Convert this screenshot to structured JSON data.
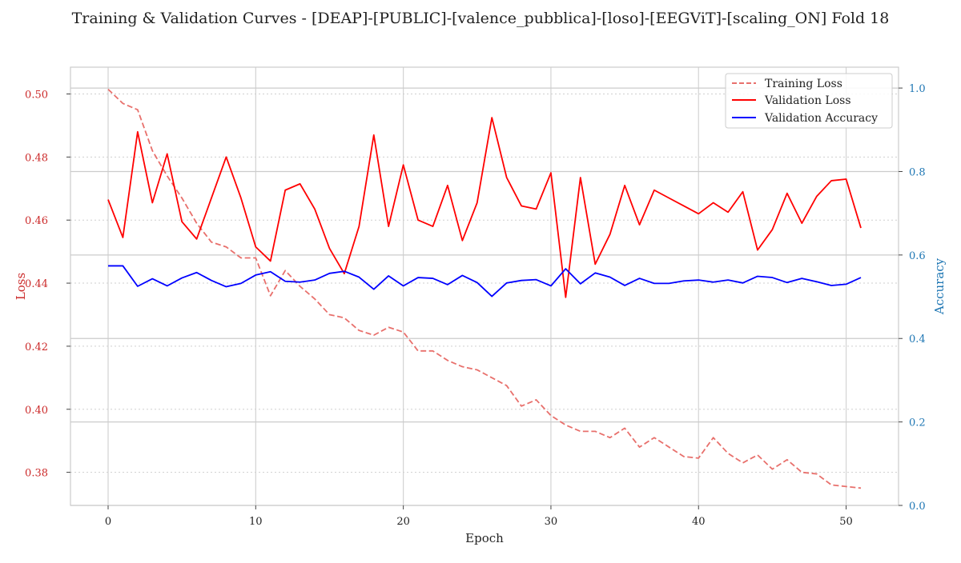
{
  "chart_data": {
    "type": "line",
    "title": "Training & Validation Curves - [DEAP]-[PUBLIC]-[valence_pubblica]-[loso]-[EEGViT]-[scaling_ON] Fold 18",
    "xlabel": "Epoch",
    "ylabel_left": "Loss",
    "ylabel_right": "Accuracy",
    "xlim": [
      -2.55,
      53.55
    ],
    "ylim_left": [
      0.3695,
      0.5085
    ],
    "ylim_right": [
      0.0,
      1.05
    ],
    "x_ticks": [
      0,
      10,
      20,
      30,
      40,
      50
    ],
    "y_left_ticks": [
      0.38,
      0.4,
      0.42,
      0.44,
      0.46,
      0.48,
      0.5
    ],
    "y_right_ticks": [
      0.0,
      0.2,
      0.4,
      0.6,
      0.8,
      1.0
    ],
    "grid": true,
    "legend_position": "top-right",
    "colors": {
      "training_loss": "#e8706c",
      "validation_loss": "#ff0000",
      "validation_accuracy": "#0000ff",
      "left_axis_text": "#cc2b2b",
      "right_axis_text": "#1f77b4"
    },
    "x": [
      0,
      1,
      2,
      3,
      4,
      5,
      6,
      7,
      8,
      9,
      10,
      11,
      12,
      13,
      14,
      15,
      16,
      17,
      18,
      19,
      20,
      21,
      22,
      23,
      24,
      25,
      26,
      27,
      28,
      29,
      30,
      31,
      32,
      33,
      34,
      35,
      36,
      37,
      38,
      39,
      40,
      41,
      42,
      43,
      44,
      45,
      46,
      47,
      48,
      49,
      50,
      51
    ],
    "series": [
      {
        "name": "Training Loss",
        "axis": "left",
        "style": "dashed",
        "values": [
          0.5015,
          0.497,
          0.495,
          0.482,
          0.474,
          0.467,
          0.459,
          0.453,
          0.4515,
          0.448,
          0.448,
          0.436,
          0.444,
          0.439,
          0.435,
          0.43,
          0.429,
          0.425,
          0.4235,
          0.426,
          0.4245,
          0.4185,
          0.4185,
          0.4155,
          0.4135,
          0.4125,
          0.41,
          0.4075,
          0.401,
          0.403,
          0.398,
          0.395,
          0.393,
          0.393,
          0.391,
          0.394,
          0.388,
          0.391,
          0.388,
          0.385,
          0.3845,
          0.391,
          0.386,
          0.383,
          0.3855,
          0.381,
          0.384,
          0.38,
          0.3795,
          0.376,
          0.3755,
          0.375
        ]
      },
      {
        "name": "Validation Loss",
        "axis": "left",
        "style": "solid",
        "values": [
          0.4665,
          0.4545,
          0.488,
          0.4655,
          0.481,
          0.4595,
          0.454,
          0.467,
          0.48,
          0.467,
          0.4515,
          0.447,
          0.4695,
          0.4715,
          0.4635,
          0.451,
          0.443,
          0.458,
          0.487,
          0.458,
          0.4775,
          0.46,
          0.458,
          0.471,
          0.4535,
          0.4655,
          0.4925,
          0.4735,
          0.4645,
          0.4635,
          0.475,
          0.4355,
          0.4735,
          0.446,
          0.4555,
          0.471,
          0.4585,
          0.4695,
          0.467,
          0.4645,
          0.462,
          0.4655,
          0.4625,
          0.469,
          0.4505,
          0.457,
          0.4685,
          0.459,
          0.4675,
          0.4725,
          0.473,
          0.4575
        ]
      },
      {
        "name": "Validation Accuracy",
        "axis": "right",
        "style": "solid",
        "values": [
          0.574,
          0.574,
          0.525,
          0.543,
          0.526,
          0.545,
          0.558,
          0.539,
          0.524,
          0.532,
          0.552,
          0.56,
          0.537,
          0.535,
          0.54,
          0.556,
          0.561,
          0.547,
          0.518,
          0.55,
          0.526,
          0.546,
          0.544,
          0.529,
          0.551,
          0.534,
          0.501,
          0.533,
          0.539,
          0.541,
          0.526,
          0.567,
          0.531,
          0.557,
          0.547,
          0.527,
          0.544,
          0.532,
          0.532,
          0.538,
          0.54,
          0.535,
          0.54,
          0.533,
          0.549,
          0.546,
          0.534,
          0.544,
          0.536,
          0.527,
          0.53,
          0.546
        ]
      }
    ]
  }
}
